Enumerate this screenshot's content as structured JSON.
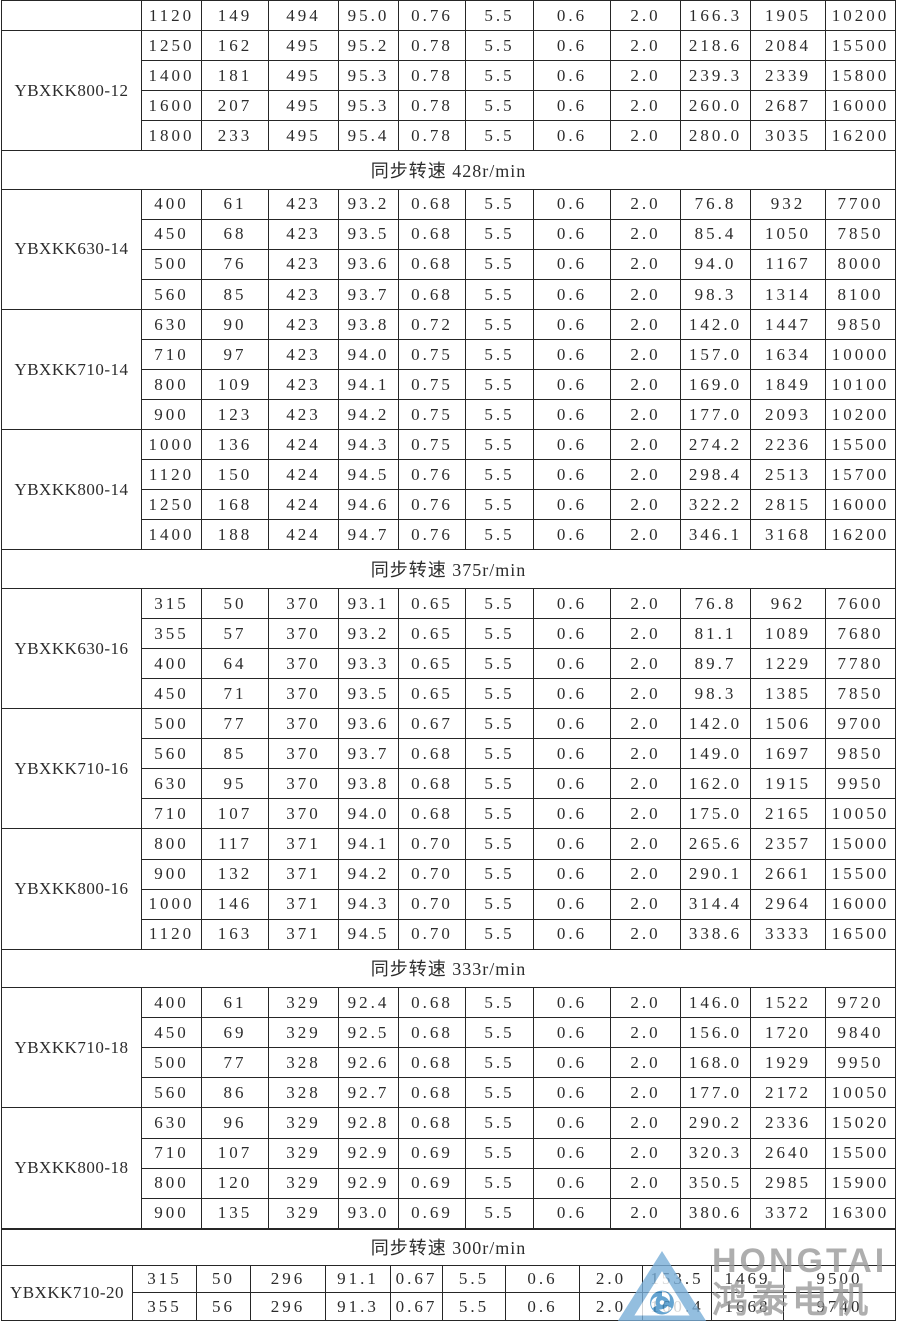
{
  "branding": {
    "logo_text": "HONGTAI",
    "logo_subtext": "鸿泰电机"
  },
  "colors": {
    "table_border": "#262626",
    "cell_text": "#2b2b2b",
    "logo_triangle_blue": "#79aed8",
    "logo_swirl_blue": "#3f8ec6",
    "logo_text_gray": "#9b9b9b"
  },
  "table1": {
    "blocks": [
      {
        "kind": "group",
        "model": "",
        "rows": [
          [
            "1120",
            "149",
            "494",
            "95.0",
            "0.76",
            "5.5",
            "0.6",
            "2.0",
            "166.3",
            "1905",
            "10200"
          ]
        ]
      },
      {
        "kind": "group",
        "model": "YBXKK800-12",
        "rows": [
          [
            "1250",
            "162",
            "495",
            "95.2",
            "0.78",
            "5.5",
            "0.6",
            "2.0",
            "218.6",
            "2084",
            "15500"
          ],
          [
            "1400",
            "181",
            "495",
            "95.3",
            "0.78",
            "5.5",
            "0.6",
            "2.0",
            "239.3",
            "2339",
            "15800"
          ],
          [
            "1600",
            "207",
            "495",
            "95.3",
            "0.78",
            "5.5",
            "0.6",
            "2.0",
            "260.0",
            "2687",
            "16000"
          ],
          [
            "1800",
            "233",
            "495",
            "95.4",
            "0.78",
            "5.5",
            "0.6",
            "2.0",
            "280.0",
            "3035",
            "16200"
          ]
        ]
      },
      {
        "kind": "header",
        "label": "同步转速 428r/min"
      },
      {
        "kind": "group",
        "model": "YBXKK630-14",
        "rows": [
          [
            "400",
            "61",
            "423",
            "93.2",
            "0.68",
            "5.5",
            "0.6",
            "2.0",
            "76.8",
            "932",
            "7700"
          ],
          [
            "450",
            "68",
            "423",
            "93.5",
            "0.68",
            "5.5",
            "0.6",
            "2.0",
            "85.4",
            "1050",
            "7850"
          ],
          [
            "500",
            "76",
            "423",
            "93.6",
            "0.68",
            "5.5",
            "0.6",
            "2.0",
            "94.0",
            "1167",
            "8000"
          ],
          [
            "560",
            "85",
            "423",
            "93.7",
            "0.68",
            "5.5",
            "0.6",
            "2.0",
            "98.3",
            "1314",
            "8100"
          ]
        ]
      },
      {
        "kind": "group",
        "model": "YBXKK710-14",
        "rows": [
          [
            "630",
            "90",
            "423",
            "93.8",
            "0.72",
            "5.5",
            "0.6",
            "2.0",
            "142.0",
            "1447",
            "9850"
          ],
          [
            "710",
            "97",
            "423",
            "94.0",
            "0.75",
            "5.5",
            "0.6",
            "2.0",
            "157.0",
            "1634",
            "10000"
          ],
          [
            "800",
            "109",
            "423",
            "94.1",
            "0.75",
            "5.5",
            "0.6",
            "2.0",
            "169.0",
            "1849",
            "10100"
          ],
          [
            "900",
            "123",
            "423",
            "94.2",
            "0.75",
            "5.5",
            "0.6",
            "2.0",
            "177.0",
            "2093",
            "10200"
          ]
        ]
      },
      {
        "kind": "group",
        "model": "YBXKK800-14",
        "rows": [
          [
            "1000",
            "136",
            "424",
            "94.3",
            "0.75",
            "5.5",
            "0.6",
            "2.0",
            "274.2",
            "2236",
            "15500"
          ],
          [
            "1120",
            "150",
            "424",
            "94.5",
            "0.76",
            "5.5",
            "0.6",
            "2.0",
            "298.4",
            "2513",
            "15700"
          ],
          [
            "1250",
            "168",
            "424",
            "94.6",
            "0.76",
            "5.5",
            "0.6",
            "2.0",
            "322.2",
            "2815",
            "16000"
          ],
          [
            "1400",
            "188",
            "424",
            "94.7",
            "0.76",
            "5.5",
            "0.6",
            "2.0",
            "346.1",
            "3168",
            "16200"
          ]
        ]
      },
      {
        "kind": "header",
        "label": "同步转速 375r/min"
      },
      {
        "kind": "group",
        "model": "YBXKK630-16",
        "rows": [
          [
            "315",
            "50",
            "370",
            "93.1",
            "0.65",
            "5.5",
            "0.6",
            "2.0",
            "76.8",
            "962",
            "7600"
          ],
          [
            "355",
            "57",
            "370",
            "93.2",
            "0.65",
            "5.5",
            "0.6",
            "2.0",
            "81.1",
            "1089",
            "7680"
          ],
          [
            "400",
            "64",
            "370",
            "93.3",
            "0.65",
            "5.5",
            "0.6",
            "2.0",
            "89.7",
            "1229",
            "7780"
          ],
          [
            "450",
            "71",
            "370",
            "93.5",
            "0.65",
            "5.5",
            "0.6",
            "2.0",
            "98.3",
            "1385",
            "7850"
          ]
        ]
      },
      {
        "kind": "group",
        "model": "YBXKK710-16",
        "rows": [
          [
            "500",
            "77",
            "370",
            "93.6",
            "0.67",
            "5.5",
            "0.6",
            "2.0",
            "142.0",
            "1506",
            "9700"
          ],
          [
            "560",
            "85",
            "370",
            "93.7",
            "0.68",
            "5.5",
            "0.6",
            "2.0",
            "149.0",
            "1697",
            "9850"
          ],
          [
            "630",
            "95",
            "370",
            "93.8",
            "0.68",
            "5.5",
            "0.6",
            "2.0",
            "162.0",
            "1915",
            "9950"
          ],
          [
            "710",
            "107",
            "370",
            "94.0",
            "0.68",
            "5.5",
            "0.6",
            "2.0",
            "175.0",
            "2165",
            "10050"
          ]
        ]
      },
      {
        "kind": "group",
        "model": "YBXKK800-16",
        "rows": [
          [
            "800",
            "117",
            "371",
            "94.1",
            "0.70",
            "5.5",
            "0.6",
            "2.0",
            "265.6",
            "2357",
            "15000"
          ],
          [
            "900",
            "132",
            "371",
            "94.2",
            "0.70",
            "5.5",
            "0.6",
            "2.0",
            "290.1",
            "2661",
            "15500"
          ],
          [
            "1000",
            "146",
            "371",
            "94.3",
            "0.70",
            "5.5",
            "0.6",
            "2.0",
            "314.4",
            "2964",
            "16000"
          ],
          [
            "1120",
            "163",
            "371",
            "94.5",
            "0.70",
            "5.5",
            "0.6",
            "2.0",
            "338.6",
            "3333",
            "16500"
          ]
        ]
      },
      {
        "kind": "header",
        "label": "同步转速 333r/min"
      },
      {
        "kind": "group",
        "model": "YBXKK710-18",
        "rows": [
          [
            "400",
            "61",
            "329",
            "92.4",
            "0.68",
            "5.5",
            "0.6",
            "2.0",
            "146.0",
            "1522",
            "9720"
          ],
          [
            "450",
            "69",
            "329",
            "92.5",
            "0.68",
            "5.5",
            "0.6",
            "2.0",
            "156.0",
            "1720",
            "9840"
          ],
          [
            "500",
            "77",
            "328",
            "92.6",
            "0.68",
            "5.5",
            "0.6",
            "2.0",
            "168.0",
            "1929",
            "9950"
          ],
          [
            "560",
            "86",
            "328",
            "92.7",
            "0.68",
            "5.5",
            "0.6",
            "2.0",
            "177.0",
            "2172",
            "10050"
          ]
        ]
      },
      {
        "kind": "group",
        "model": "YBXKK800-18",
        "rows": [
          [
            "630",
            "96",
            "329",
            "92.8",
            "0.68",
            "5.5",
            "0.6",
            "2.0",
            "290.2",
            "2336",
            "15020"
          ],
          [
            "710",
            "107",
            "329",
            "92.9",
            "0.69",
            "5.5",
            "0.6",
            "2.0",
            "320.3",
            "2640",
            "15500"
          ],
          [
            "800",
            "120",
            "329",
            "92.9",
            "0.69",
            "5.5",
            "0.6",
            "2.0",
            "350.5",
            "2985",
            "15900"
          ],
          [
            "900",
            "135",
            "329",
            "93.0",
            "0.69",
            "5.5",
            "0.6",
            "2.0",
            "380.6",
            "3372",
            "16300"
          ]
        ]
      }
    ]
  },
  "table2": {
    "blocks": [
      {
        "kind": "header",
        "label": "同步转速 300r/min"
      },
      {
        "kind": "group",
        "model": "YBXKK710-20",
        "rows": [
          [
            "315",
            "50",
            "296",
            "91.1",
            "0.67",
            "5.5",
            "0.6",
            "2.0",
            "153.5",
            "1469",
            "9500"
          ],
          [
            "355",
            "56",
            "296",
            "91.3",
            "0.67",
            "5.5",
            "0.6",
            "2.0",
            "160.4",
            "1668",
            "9740"
          ]
        ]
      }
    ]
  }
}
